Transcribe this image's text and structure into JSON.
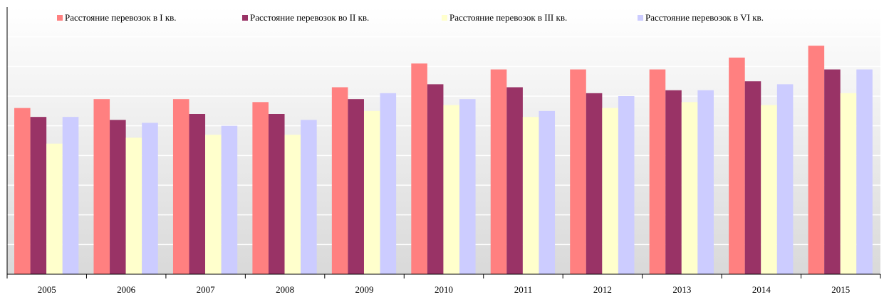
{
  "chart_data": {
    "type": "bar",
    "categories": [
      "2005",
      "2006",
      "2007",
      "2008",
      "2009",
      "2010",
      "2011",
      "2012",
      "2013",
      "2014",
      "2015"
    ],
    "series": [
      {
        "name": "Расстояние перевозок в I кв.",
        "color": "#ff8080",
        "values": [
          5.6,
          5.9,
          5.9,
          5.8,
          6.3,
          7.1,
          6.9,
          6.9,
          6.9,
          7.3,
          7.7
        ]
      },
      {
        "name": "Расстояние перевозок во II кв.",
        "color": "#993366",
        "values": [
          5.3,
          5.2,
          5.4,
          5.4,
          5.9,
          6.4,
          6.3,
          6.1,
          6.2,
          6.5,
          6.9
        ]
      },
      {
        "name": "Расстояние перевозок в III кв.",
        "color": "#ffffcc",
        "values": [
          4.4,
          4.6,
          4.7,
          4.7,
          5.5,
          5.7,
          5.3,
          5.6,
          5.8,
          5.7,
          6.1
        ]
      },
      {
        "name": "Расстояние перевозок в VI кв.",
        "color": "#ccccff",
        "values": [
          5.3,
          5.1,
          5.0,
          5.2,
          6.1,
          5.9,
          5.5,
          6.0,
          6.2,
          6.4,
          6.9
        ]
      }
    ],
    "ylim": [
      0,
      9
    ],
    "yticks": [
      0,
      1,
      2,
      3,
      4,
      5,
      6,
      7,
      8
    ],
    "grid": true
  }
}
